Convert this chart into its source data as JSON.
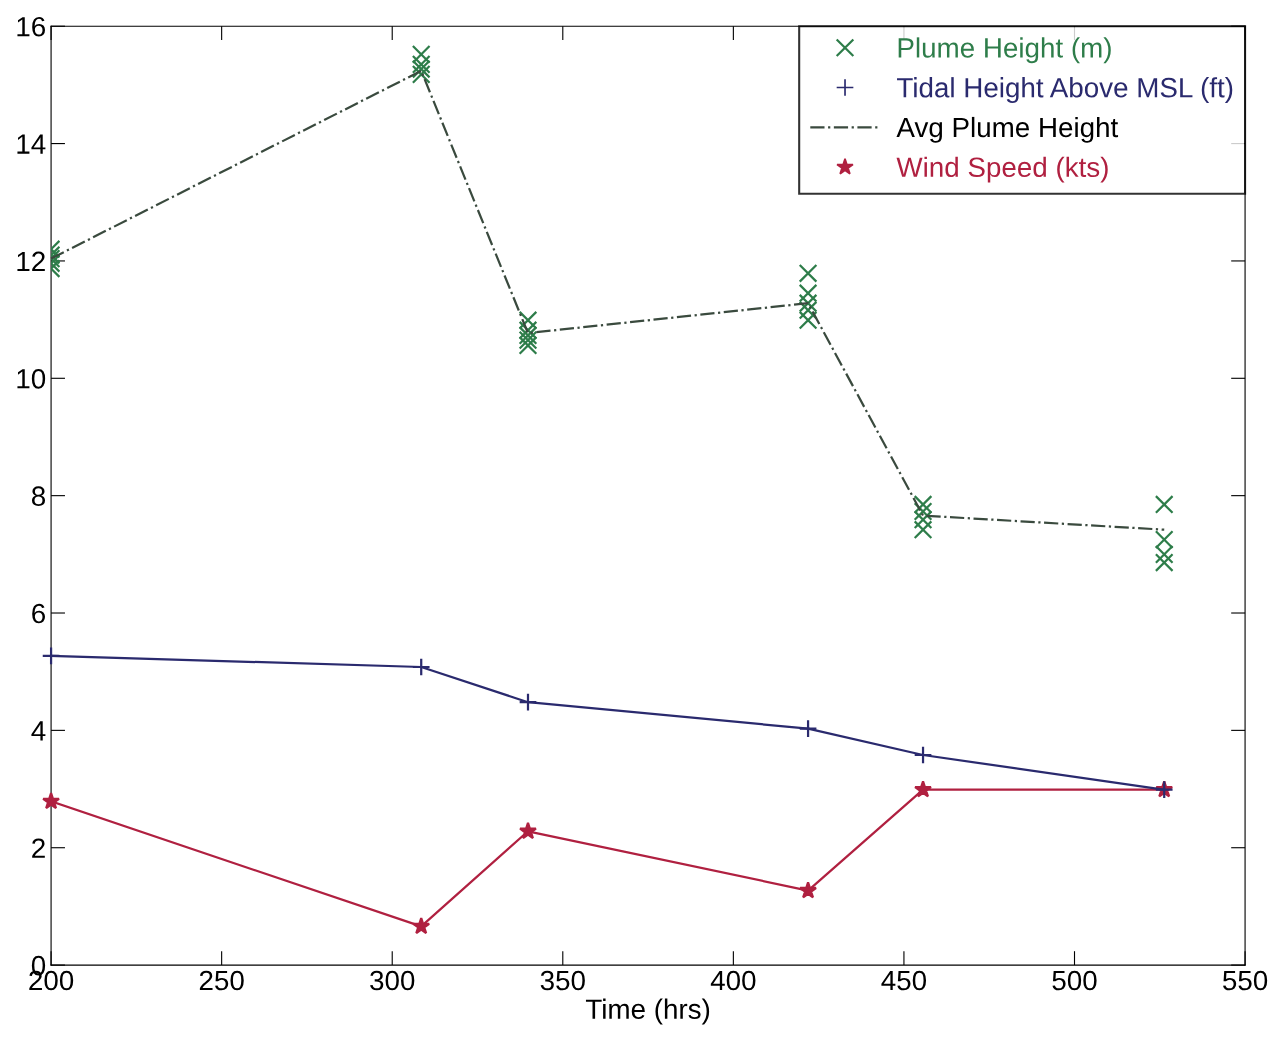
{
  "chart_data": {
    "type": "line",
    "xlabel": "Time (hrs)",
    "xlim": [
      200,
      550
    ],
    "xticks": [
      200,
      250,
      300,
      350,
      400,
      450,
      500,
      550
    ],
    "ylim": [
      0,
      16
    ],
    "yticks": [
      0,
      2,
      4,
      6,
      8,
      10,
      12,
      14,
      16
    ],
    "grid": false,
    "legend": "top right",
    "series": [
      {
        "name": "Plume Height (m)",
        "type": "scatter",
        "marker": "cross",
        "color": "#2e7d4a",
        "x": [
          200,
          200,
          200,
          200,
          200,
          308.5,
          308.5,
          308.5,
          308.5,
          339.8,
          339.8,
          339.8,
          339.8,
          339.8,
          421.9,
          421.9,
          421.9,
          421.9,
          421.9,
          455.6,
          455.6,
          455.6,
          455.6,
          526.3,
          526.3,
          526.3,
          526.3
        ],
        "values": [
          12.2,
          12.1,
          12.04,
          11.96,
          11.87,
          15.52,
          15.35,
          15.27,
          15.18,
          10.99,
          10.82,
          10.73,
          10.65,
          10.56,
          11.79,
          11.45,
          11.28,
          11.16,
          10.99,
          7.85,
          7.73,
          7.59,
          7.42,
          7.85,
          7.25,
          7.0,
          6.86
        ]
      },
      {
        "name": "Tidal Height Above MSL (ft)",
        "marker": "plus",
        "line_style": "solid",
        "color": "#2a2a6e",
        "x": [
          200,
          308.5,
          339.8,
          421.9,
          455.6,
          526.3
        ],
        "values": [
          5.27,
          5.08,
          4.48,
          4.03,
          3.58,
          2.99
        ]
      },
      {
        "name": "Avg Plume Height",
        "marker": "none",
        "line_style": "dashdot",
        "color": "#3a4a3e",
        "x": [
          200,
          308.5,
          339.8,
          421.9,
          455.6,
          526.3
        ],
        "values": [
          12.04,
          15.24,
          10.77,
          11.28,
          7.66,
          7.42
        ]
      },
      {
        "name": "Wind Speed (kts)",
        "marker": "star",
        "line_style": "solid",
        "color": "#b02040",
        "x": [
          200,
          308.5,
          339.8,
          421.9,
          455.6,
          526.3
        ],
        "values": [
          2.79,
          0.66,
          2.28,
          1.27,
          2.99,
          2.99
        ]
      }
    ]
  }
}
